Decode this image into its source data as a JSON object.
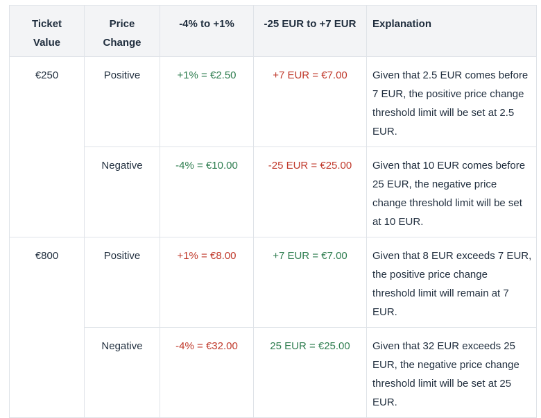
{
  "headers": {
    "ticket_value": "Ticket Value",
    "price_change": "Price Change",
    "pct_range": "-4% to +1%",
    "eur_range": "-25 EUR to +7 EUR",
    "explanation": "Explanation"
  },
  "rows": [
    {
      "ticket_value": "€250",
      "price_change": "Positive",
      "pct": "+1% = €2.50",
      "pct_color": "#2e7d4f",
      "eur": "+7 EUR = €7.00",
      "eur_color": "#c0392b",
      "explanation": "Given that 2.5 EUR comes before 7 EUR, the positive price change threshold limit will be set at 2.5 EUR."
    },
    {
      "ticket_value": "",
      "price_change": "Negative",
      "pct": "-4% = €10.00",
      "pct_color": "#2e7d4f",
      "eur": "-25 EUR = €25.00",
      "eur_color": "#c0392b",
      "explanation": "Given that 10 EUR comes before 25 EUR, the negative price change threshold limit will be set at 10 EUR."
    },
    {
      "ticket_value": "€800",
      "price_change": "Positive",
      "pct": "+1% = €8.00",
      "pct_color": "#c0392b",
      "eur": "+7 EUR = €7.00",
      "eur_color": "#2e7d4f",
      "explanation": "Given that 8 EUR exceeds 7 EUR, the positive price change threshold limit will remain at 7 EUR."
    },
    {
      "ticket_value": "",
      "price_change": "Negative",
      "pct": "-4% = €32.00",
      "pct_color": "#c0392b",
      "eur": "25 EUR = €25.00",
      "eur_color": "#2e7d4f",
      "explanation": "Given that 32 EUR exceeds 25 EUR, the negative price change threshold limit will be set at 25 EUR."
    }
  ]
}
